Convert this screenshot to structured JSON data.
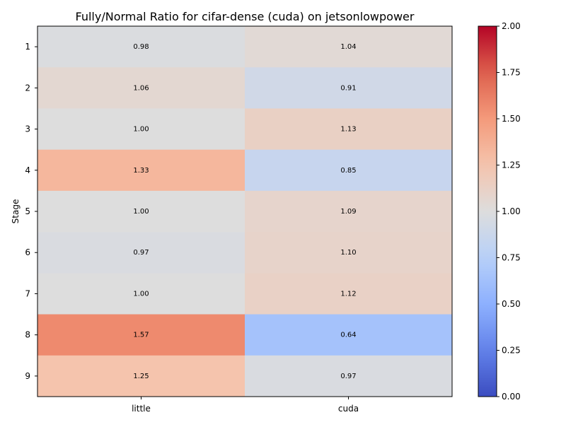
{
  "chart_data": {
    "type": "heatmap",
    "title": "Fully/Normal Ratio for cifar-dense (cuda) on jetsonlowpower",
    "xlabel": "",
    "ylabel": "Stage",
    "x_categories": [
      "little",
      "cuda"
    ],
    "y_categories": [
      "1",
      "2",
      "3",
      "4",
      "5",
      "6",
      "7",
      "8",
      "9"
    ],
    "values": [
      [
        0.98,
        1.04
      ],
      [
        1.06,
        0.91
      ],
      [
        1.0,
        1.13
      ],
      [
        1.33,
        0.85
      ],
      [
        1.0,
        1.09
      ],
      [
        0.97,
        1.1
      ],
      [
        1.0,
        1.12
      ],
      [
        1.57,
        0.64
      ],
      [
        1.25,
        0.97
      ]
    ],
    "cell_labels": [
      [
        "0.98",
        "1.04"
      ],
      [
        "1.06",
        "0.91"
      ],
      [
        "1.00",
        "1.13"
      ],
      [
        "1.33",
        "0.85"
      ],
      [
        "1.00",
        "1.09"
      ],
      [
        "0.97",
        "1.10"
      ],
      [
        "1.00",
        "1.12"
      ],
      [
        "1.57",
        "0.64"
      ],
      [
        "1.25",
        "0.97"
      ]
    ],
    "colormap": "coolwarm",
    "colorbar": {
      "range": [
        0.0,
        2.0
      ],
      "ticks": [
        "0.00",
        "0.25",
        "0.50",
        "0.75",
        "1.00",
        "1.25",
        "1.50",
        "1.75",
        "2.00"
      ]
    },
    "grid": false
  }
}
